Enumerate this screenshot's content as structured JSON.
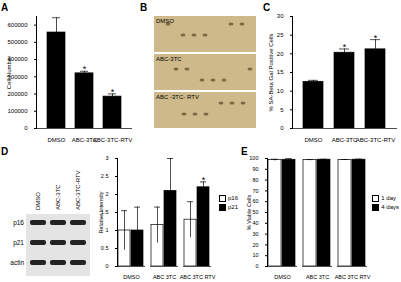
{
  "chart_data": [
    {
      "type": "bar",
      "title": "A",
      "y_label": "Cell Number",
      "categories": [
        "DMSO",
        "ABC-3TC",
        "ABC-3TC-RTV"
      ],
      "values": [
        557000,
        320000,
        185000
      ],
      "errors": [
        86000,
        12000,
        16000
      ],
      "color": "#000000",
      "ylim": [
        0,
        650000
      ],
      "yticks": [
        0,
        100000,
        200000,
        300000,
        400000,
        500000,
        600000
      ],
      "annotations": [
        {
          "category": "ABC-3TC",
          "text": "*"
        },
        {
          "category": "ABC-3TC-RTV",
          "text": "*"
        }
      ]
    },
    {
      "type": "bar",
      "title": "C",
      "y_label": "% SA-Beta Gal Positive Cells",
      "categories": [
        "DMSO",
        "ABC-3TC",
        "ABC-3TC-RTV"
      ],
      "values": [
        12.5,
        20.3,
        21.2
      ],
      "errors": [
        0.4,
        1.0,
        2.6
      ],
      "color": "#000000",
      "ylim": [
        0,
        30
      ],
      "yticks": [
        0,
        5,
        10,
        15,
        20,
        25,
        30
      ],
      "annotations": [
        {
          "category": "ABC-3TC",
          "text": "*"
        },
        {
          "category": "ABC-3TC-RTV",
          "text": "*"
        }
      ]
    },
    {
      "type": "bar",
      "y_label": "Relative Intensity",
      "categories": [
        "DMSO",
        "ABC 3TC",
        "ABC 3TC RTV"
      ],
      "series": [
        {
          "name": "p16",
          "color": "#ffffff",
          "values": [
            1.0,
            1.15,
            1.3
          ],
          "errors": [
            0.55,
            0.5,
            0.5
          ]
        },
        {
          "name": "p21",
          "color": "#000000",
          "values": [
            1.0,
            2.1,
            2.2
          ],
          "errors": [
            0.65,
            0.9,
            0.15
          ]
        }
      ],
      "legend": "right",
      "ylim": [
        0,
        3
      ],
      "yticks": [
        0,
        0.5,
        1,
        1.5,
        2,
        2.5,
        3
      ],
      "annotations": [
        {
          "category": "ABC 3TC RTV",
          "series": "p21",
          "text": "*"
        }
      ]
    },
    {
      "type": "bar",
      "title": "E",
      "y_label": "% Viable Cells",
      "categories": [
        "DMSO",
        "ABC 3TC",
        "ABC 3TC RTV"
      ],
      "series": [
        {
          "name": "1 day",
          "color": "#ffffff",
          "values": [
            98.5,
            98.6,
            98.6
          ],
          "errors": [
            0.8,
            0.4,
            0.5
          ]
        },
        {
          "name": "4 days",
          "color": "#000000",
          "values": [
            98.8,
            98.9,
            98.9
          ],
          "errors": [
            1.0,
            0.4,
            0.5
          ]
        }
      ],
      "legend": "right",
      "ylim": [
        0,
        100
      ],
      "yticks": [
        0,
        10,
        20,
        30,
        40,
        50,
        60,
        70,
        80,
        90,
        100
      ]
    }
  ],
  "image_panel": {
    "label": "B",
    "images": [
      "DMSO",
      "ABC-3TC",
      "ABC -3TC- RTV"
    ]
  },
  "blot": {
    "label": "D",
    "lanes": [
      "DMSO",
      "ABC-3TC",
      "ABC-3TC-RTV"
    ],
    "bands": [
      "p16",
      "p21",
      "actin"
    ]
  }
}
